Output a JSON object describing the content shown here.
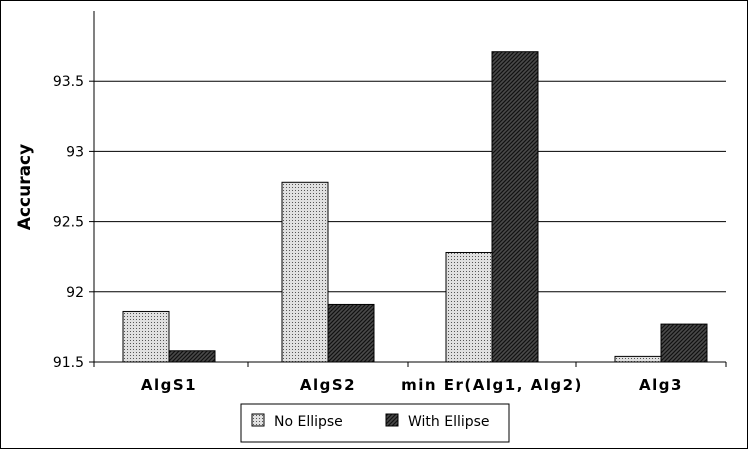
{
  "chart_data": {
    "type": "bar",
    "title": "",
    "xlabel": "",
    "ylabel": "Accuracy",
    "ylim": [
      91.5,
      94.0
    ],
    "yticks": [
      91.5,
      92,
      92.5,
      93,
      93.5
    ],
    "ytick_labels": [
      "91.5",
      "92",
      "92.5",
      "93",
      "93.5"
    ],
    "grid": true,
    "legend_position": "bottom-center",
    "categories": [
      "AlgS1",
      "AlgS2",
      "min Er(Alg1, Alg2)",
      "Alg3"
    ],
    "series": [
      {
        "name": "No Ellipse",
        "values": [
          91.86,
          92.78,
          92.28,
          91.54
        ],
        "fill": "#d4d4d4",
        "pattern": "dots"
      },
      {
        "name": "With Ellipse",
        "values": [
          91.58,
          91.91,
          93.71,
          91.77
        ],
        "fill": "#3a3a3a",
        "pattern": "diagonal"
      }
    ]
  }
}
